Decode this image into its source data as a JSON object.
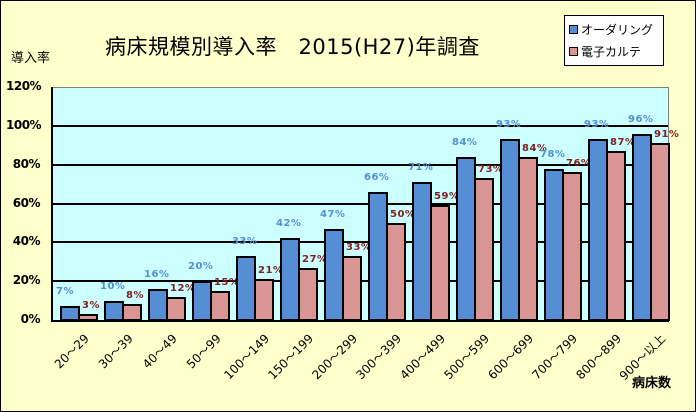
{
  "chart_data": {
    "type": "bar",
    "title": "病床規模別導入率　2015(H27)年調査",
    "xlabel": "病床数",
    "ylabel": "導入率",
    "ylim": [
      0,
      120
    ],
    "yticks": [
      "0%",
      "20%",
      "40%",
      "60%",
      "80%",
      "100%",
      "120%"
    ],
    "grid": true,
    "legend_position": "top-right",
    "categories": [
      "20～29",
      "30～39",
      "40～49",
      "50～99",
      "100～149",
      "150～199",
      "200～299",
      "300～399",
      "400～499",
      "500～599",
      "600～699",
      "700～799",
      "800～899",
      "900～以上"
    ],
    "series": [
      {
        "name": "オーダリング",
        "color": "#558ed5",
        "values": [
          7,
          10,
          16,
          20,
          33,
          42,
          47,
          66,
          71,
          84,
          93,
          78,
          93,
          96
        ]
      },
      {
        "name": "電子カルテ",
        "color": "#d99694",
        "values": [
          3,
          8,
          12,
          15,
          21,
          27,
          33,
          50,
          59,
          73,
          84,
          76,
          87,
          91
        ]
      }
    ]
  },
  "labels": {
    "title": "病床規模別導入率　2015(H27)年調査",
    "ylabel": "導入率",
    "xlabel": "病床数",
    "legend": [
      "オーダリング",
      "電子カルテ"
    ]
  }
}
